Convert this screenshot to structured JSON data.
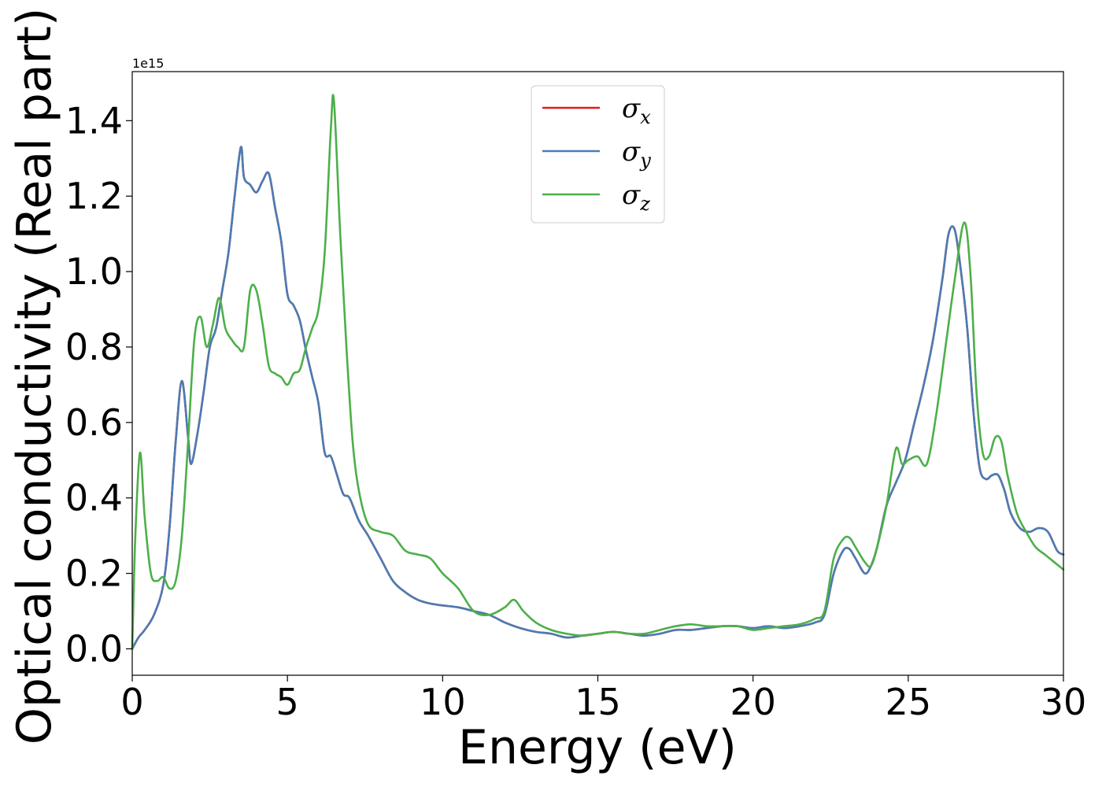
{
  "chart_data": {
    "type": "line",
    "xlabel": "Energy (eV)",
    "ylabel": "Optical conductivity (Real part)",
    "y_offset_label": "1e15",
    "xlim": [
      0,
      30
    ],
    "ylim": [
      -0.07,
      1.53
    ],
    "x_ticks": [
      0,
      5,
      10,
      15,
      20,
      25,
      30
    ],
    "x_tick_labels": [
      "0",
      "5",
      "10",
      "15",
      "20",
      "25",
      "30"
    ],
    "y_ticks": [
      0.0,
      0.2,
      0.4,
      0.6,
      0.8,
      1.0,
      1.2,
      1.4
    ],
    "y_tick_labels": [
      "0.0",
      "0.2",
      "0.4",
      "0.6",
      "0.8",
      "1.0",
      "1.2",
      "1.4"
    ],
    "grid": false,
    "legend_position": "top-center",
    "series": [
      {
        "name": "σ",
        "subscript": "x",
        "color": "#e41a1c",
        "x": [
          0,
          0.2,
          0.4,
          0.7,
          1.0,
          1.2,
          1.4,
          1.6,
          1.8,
          1.9,
          2.1,
          2.3,
          2.5,
          2.7,
          2.9,
          3.1,
          3.3,
          3.5,
          3.6,
          3.8,
          4.0,
          4.2,
          4.4,
          4.6,
          4.8,
          5.0,
          5.2,
          5.4,
          5.6,
          5.8,
          6.0,
          6.2,
          6.4,
          6.6,
          6.8,
          7.0,
          7.3,
          7.6,
          8.0,
          8.4,
          8.8,
          9.2,
          9.6,
          10.0,
          10.5,
          11.0,
          11.5,
          12.0,
          12.5,
          13.0,
          13.5,
          14.0,
          14.5,
          15.0,
          15.5,
          16.0,
          16.5,
          17.0,
          17.5,
          18.0,
          18.5,
          19.0,
          19.5,
          20.0,
          20.5,
          21.0,
          21.5,
          22.0,
          22.3,
          22.6,
          22.9,
          23.1,
          23.3,
          23.6,
          23.8,
          24.0,
          24.3,
          24.6,
          24.9,
          25.2,
          25.5,
          25.8,
          26.1,
          26.3,
          26.5,
          26.7,
          26.9,
          27.1,
          27.3,
          27.5,
          27.7,
          27.9,
          28.1,
          28.3,
          28.6,
          28.9,
          29.2,
          29.5,
          29.8,
          30.0
        ],
        "values": [
          0.0,
          0.03,
          0.05,
          0.09,
          0.17,
          0.32,
          0.55,
          0.71,
          0.56,
          0.49,
          0.57,
          0.68,
          0.8,
          0.85,
          0.95,
          1.05,
          1.2,
          1.33,
          1.25,
          1.23,
          1.21,
          1.24,
          1.26,
          1.17,
          1.08,
          0.94,
          0.91,
          0.87,
          0.79,
          0.72,
          0.65,
          0.52,
          0.51,
          0.46,
          0.41,
          0.4,
          0.34,
          0.3,
          0.24,
          0.18,
          0.15,
          0.13,
          0.12,
          0.115,
          0.11,
          0.1,
          0.09,
          0.07,
          0.055,
          0.045,
          0.04,
          0.03,
          0.035,
          0.04,
          0.045,
          0.04,
          0.035,
          0.04,
          0.05,
          0.05,
          0.055,
          0.06,
          0.06,
          0.055,
          0.06,
          0.055,
          0.06,
          0.07,
          0.09,
          0.2,
          0.26,
          0.265,
          0.24,
          0.2,
          0.22,
          0.27,
          0.38,
          0.44,
          0.5,
          0.6,
          0.7,
          0.82,
          0.98,
          1.1,
          1.11,
          1.0,
          0.85,
          0.63,
          0.48,
          0.45,
          0.46,
          0.46,
          0.42,
          0.36,
          0.32,
          0.31,
          0.32,
          0.31,
          0.26,
          0.25
        ]
      },
      {
        "name": "σ",
        "subscript": "y",
        "color": "#4a7cb4",
        "x": [
          0,
          0.2,
          0.4,
          0.7,
          1.0,
          1.2,
          1.4,
          1.6,
          1.8,
          1.9,
          2.1,
          2.3,
          2.5,
          2.7,
          2.9,
          3.1,
          3.3,
          3.5,
          3.6,
          3.8,
          4.0,
          4.2,
          4.4,
          4.6,
          4.8,
          5.0,
          5.2,
          5.4,
          5.6,
          5.8,
          6.0,
          6.2,
          6.4,
          6.6,
          6.8,
          7.0,
          7.3,
          7.6,
          8.0,
          8.4,
          8.8,
          9.2,
          9.6,
          10.0,
          10.5,
          11.0,
          11.5,
          12.0,
          12.5,
          13.0,
          13.5,
          14.0,
          14.5,
          15.0,
          15.5,
          16.0,
          16.5,
          17.0,
          17.5,
          18.0,
          18.5,
          19.0,
          19.5,
          20.0,
          20.5,
          21.0,
          21.5,
          22.0,
          22.3,
          22.6,
          22.9,
          23.1,
          23.3,
          23.6,
          23.8,
          24.0,
          24.3,
          24.6,
          24.9,
          25.2,
          25.5,
          25.8,
          26.1,
          26.3,
          26.5,
          26.7,
          26.9,
          27.1,
          27.3,
          27.5,
          27.7,
          27.9,
          28.1,
          28.3,
          28.6,
          28.9,
          29.2,
          29.5,
          29.8,
          30.0
        ],
        "values": [
          0.0,
          0.03,
          0.05,
          0.09,
          0.17,
          0.32,
          0.55,
          0.71,
          0.56,
          0.49,
          0.57,
          0.68,
          0.8,
          0.85,
          0.95,
          1.05,
          1.2,
          1.33,
          1.25,
          1.23,
          1.21,
          1.24,
          1.26,
          1.17,
          1.08,
          0.94,
          0.91,
          0.87,
          0.79,
          0.72,
          0.65,
          0.52,
          0.51,
          0.46,
          0.41,
          0.4,
          0.34,
          0.3,
          0.24,
          0.18,
          0.15,
          0.13,
          0.12,
          0.115,
          0.11,
          0.1,
          0.09,
          0.07,
          0.055,
          0.045,
          0.04,
          0.03,
          0.035,
          0.04,
          0.045,
          0.04,
          0.035,
          0.04,
          0.05,
          0.05,
          0.055,
          0.06,
          0.06,
          0.055,
          0.06,
          0.055,
          0.06,
          0.07,
          0.09,
          0.2,
          0.26,
          0.265,
          0.24,
          0.2,
          0.22,
          0.27,
          0.38,
          0.44,
          0.5,
          0.6,
          0.7,
          0.82,
          0.98,
          1.1,
          1.11,
          1.0,
          0.85,
          0.63,
          0.48,
          0.45,
          0.46,
          0.46,
          0.42,
          0.36,
          0.32,
          0.31,
          0.32,
          0.31,
          0.26,
          0.25
        ]
      },
      {
        "name": "σ",
        "subscript": "z",
        "color": "#4daf4a",
        "x": [
          0,
          0.1,
          0.25,
          0.4,
          0.6,
          0.8,
          1.0,
          1.2,
          1.4,
          1.6,
          1.8,
          2.0,
          2.2,
          2.4,
          2.6,
          2.8,
          3.0,
          3.2,
          3.4,
          3.6,
          3.8,
          4.0,
          4.2,
          4.4,
          4.6,
          4.8,
          5.0,
          5.2,
          5.4,
          5.6,
          5.8,
          6.0,
          6.2,
          6.4,
          6.5,
          6.7,
          6.9,
          7.1,
          7.3,
          7.6,
          8.0,
          8.4,
          8.8,
          9.2,
          9.6,
          10.0,
          10.5,
          11.0,
          11.5,
          12.0,
          12.3,
          12.6,
          13.0,
          13.5,
          14.0,
          14.5,
          15.0,
          15.5,
          16.0,
          16.5,
          17.0,
          17.5,
          18.0,
          18.5,
          19.0,
          19.5,
          20.0,
          20.5,
          21.0,
          21.5,
          22.0,
          22.3,
          22.6,
          22.9,
          23.1,
          23.3,
          23.6,
          23.8,
          24.0,
          24.3,
          24.6,
          24.8,
          25.0,
          25.3,
          25.6,
          25.9,
          26.2,
          26.5,
          26.8,
          27.0,
          27.2,
          27.4,
          27.6,
          27.8,
          28.0,
          28.2,
          28.5,
          28.8,
          29.1,
          29.4,
          29.7,
          30.0
        ],
        "values": [
          0.0,
          0.3,
          0.52,
          0.35,
          0.2,
          0.18,
          0.19,
          0.16,
          0.18,
          0.3,
          0.55,
          0.82,
          0.88,
          0.8,
          0.86,
          0.93,
          0.85,
          0.82,
          0.8,
          0.8,
          0.95,
          0.95,
          0.86,
          0.75,
          0.73,
          0.72,
          0.7,
          0.73,
          0.74,
          0.8,
          0.85,
          0.9,
          1.05,
          1.38,
          1.45,
          1.1,
          0.8,
          0.55,
          0.42,
          0.33,
          0.31,
          0.3,
          0.26,
          0.25,
          0.24,
          0.2,
          0.16,
          0.1,
          0.09,
          0.11,
          0.13,
          0.1,
          0.07,
          0.05,
          0.04,
          0.035,
          0.04,
          0.045,
          0.04,
          0.04,
          0.05,
          0.06,
          0.065,
          0.06,
          0.06,
          0.06,
          0.05,
          0.055,
          0.06,
          0.065,
          0.08,
          0.1,
          0.24,
          0.29,
          0.295,
          0.27,
          0.23,
          0.22,
          0.27,
          0.38,
          0.53,
          0.49,
          0.5,
          0.51,
          0.49,
          0.62,
          0.8,
          0.98,
          1.13,
          1.0,
          0.68,
          0.52,
          0.51,
          0.56,
          0.55,
          0.46,
          0.36,
          0.31,
          0.27,
          0.25,
          0.23,
          0.21
        ]
      }
    ]
  }
}
